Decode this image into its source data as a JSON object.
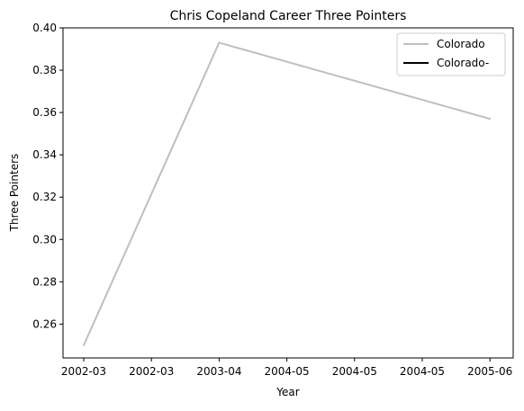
{
  "chart_data": {
    "type": "line",
    "title": "Chris Copeland Career Three Pointers",
    "xlabel": "Year",
    "ylabel": "Three Pointers",
    "x_tick_labels": [
      "2002-03",
      "2002-03",
      "2003-04",
      "2004-05",
      "2004-05",
      "2004-05",
      "2005-06"
    ],
    "y_tick_labels": [
      "0.26",
      "0.28",
      "0.30",
      "0.32",
      "0.34",
      "0.36",
      "0.38",
      "0.40"
    ],
    "ylim": [
      0.244,
      0.4
    ],
    "grid": false,
    "legend_position": "top-right",
    "series": [
      {
        "name": "Colorado",
        "color": "#bfbfbf",
        "points": [
          {
            "x": "2002-03",
            "y": 0.25
          },
          {
            "x": "2003-04",
            "y": 0.393
          },
          {
            "x": "2005-06",
            "y": 0.357
          }
        ]
      },
      {
        "name": "Colorado-",
        "color": "#000000",
        "points": []
      }
    ]
  }
}
